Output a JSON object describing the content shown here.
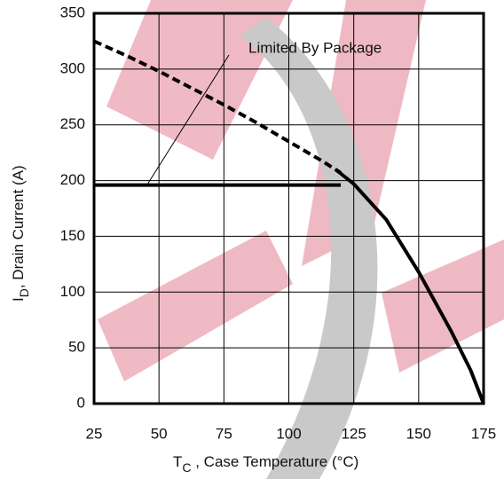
{
  "chart_data": {
    "type": "line",
    "ylabel": {
      "main": "I",
      "sub": "D",
      "rest": ",  Drain Current (A)"
    },
    "xlabel": {
      "main": "T",
      "sub": "C",
      "rest": " , Case Temperature (°C)"
    },
    "annotation": "Limited By Package",
    "xlim": [
      25,
      175
    ],
    "xticks": [
      25,
      50,
      75,
      100,
      125,
      150,
      175
    ],
    "ylim": [
      0,
      350
    ],
    "yticks": [
      0,
      50,
      100,
      150,
      200,
      250,
      300,
      350
    ],
    "grid": true,
    "series": [
      {
        "color": "#000000",
        "dash": "dashed",
        "x": [
          25,
          37.5,
          50,
          62.5,
          75,
          87.5,
          100,
          112.5,
          120
        ],
        "values": [
          325,
          312,
          298,
          283,
          268,
          252,
          235,
          218,
          207
        ]
      },
      {
        "color": "#000000",
        "dash": "solid",
        "x": [
          118,
          125,
          137.5,
          150,
          162.5,
          170,
          175
        ],
        "values": [
          210,
          197,
          165,
          118,
          65,
          30,
          0
        ]
      },
      {
        "color": "#000000",
        "dash": "solid",
        "x": [
          25,
          120
        ],
        "values": [
          196,
          196
        ]
      }
    ]
  }
}
